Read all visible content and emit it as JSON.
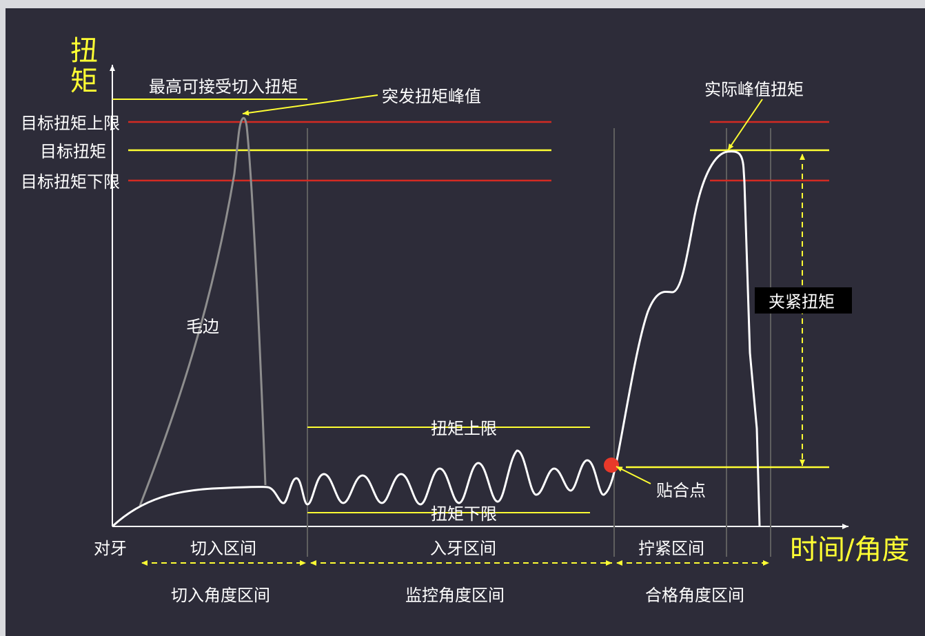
{
  "y_axis_label": "扭矩",
  "x_axis_label": "时间/角度",
  "labels": {
    "max_entry_torque": "最高可接受切入扭矩",
    "burst_peak": "突发扭矩峰值",
    "actual_peak": "实际峰值扭矩",
    "target_upper": "目标扭矩上限",
    "target": "目标扭矩",
    "target_lower": "目标扭矩下限",
    "burr": "毛边",
    "torque_upper": "扭矩上限",
    "torque_lower": "扭矩下限",
    "fit_point": "贴合点",
    "clamp_torque": "夹紧扭矩"
  },
  "x_regions": {
    "align": "对牙",
    "entry": "切入区间",
    "thread": "入牙区间",
    "tighten": "拧紧区间"
  },
  "angle_ranges": {
    "entry_angle": "切入角度区间",
    "monitor_angle": "监控角度区间",
    "pass_angle": "合格角度区间"
  },
  "colors": {
    "background": "#2d2c39",
    "limit_red": "#d42a22",
    "yellow": "#ffff33",
    "curve": "#ffffff",
    "burr_curve": "#8e8e8e",
    "fit_point": "#e8392a"
  }
}
